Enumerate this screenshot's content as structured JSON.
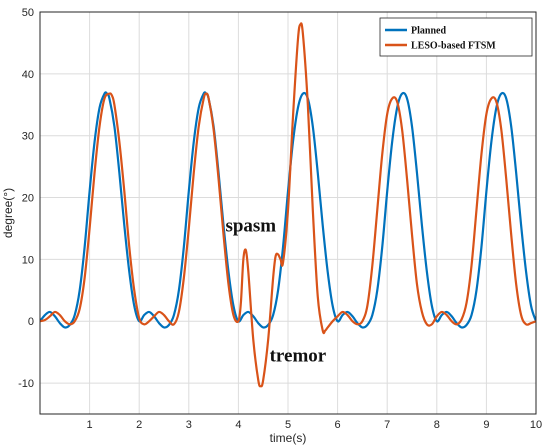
{
  "chart_data": {
    "type": "line",
    "title": "",
    "xlabel": "time(s)",
    "ylabel": "degree(°)",
    "xlim": [
      0,
      10
    ],
    "ylim": [
      -15,
      50
    ],
    "xticks": [
      1,
      2,
      3,
      4,
      5,
      6,
      7,
      8,
      9,
      10
    ],
    "yticks": [
      -10,
      0,
      10,
      20,
      30,
      40,
      50
    ],
    "grid": true,
    "legend_position": "top-right",
    "series": [
      {
        "name": "Planned",
        "color": "#0072BD",
        "x": [
          0.0,
          0.1,
          0.2,
          0.3,
          0.4,
          0.5,
          0.6,
          0.7,
          0.8,
          0.9,
          1.0,
          1.1,
          1.2,
          1.3,
          1.35,
          1.4,
          1.5,
          1.6,
          1.7,
          1.8,
          1.9,
          2.0,
          2.1,
          2.2,
          2.3,
          2.4,
          2.5,
          2.6,
          2.7,
          2.8,
          2.9,
          3.0,
          3.1,
          3.2,
          3.3,
          3.35,
          3.4,
          3.5,
          3.6,
          3.7,
          3.8,
          3.9,
          4.0,
          4.1,
          4.2,
          4.3,
          4.4,
          4.5,
          4.6,
          4.7,
          4.8,
          4.9,
          5.0,
          5.1,
          5.2,
          5.3,
          5.4,
          5.5,
          5.6,
          5.7,
          5.8,
          5.9,
          6.0,
          6.1,
          6.2,
          6.3,
          6.4,
          6.5,
          6.6,
          6.7,
          6.8,
          6.9,
          7.0,
          7.1,
          7.2,
          7.3,
          7.4,
          7.5,
          7.6,
          7.7,
          7.8,
          7.9,
          8.0,
          8.1,
          8.2,
          8.3,
          8.4,
          8.5,
          8.6,
          8.7,
          8.8,
          8.9,
          9.0,
          9.1,
          9.2,
          9.3,
          9.4,
          9.5,
          9.6,
          9.7,
          9.8,
          9.9,
          10.0
        ],
        "y": [
          0,
          1.0,
          1.5,
          0.8,
          -0.3,
          -1.0,
          -0.6,
          1.0,
          5.0,
          12.0,
          21.0,
          29.0,
          34.5,
          36.8,
          36.8,
          36.0,
          31.5,
          24.0,
          15.5,
          8.0,
          2.5,
          0,
          1.0,
          1.5,
          0.8,
          -0.3,
          -1.0,
          -0.6,
          1.0,
          5.0,
          12.0,
          21.0,
          29.0,
          34.5,
          36.8,
          36.8,
          36.0,
          31.5,
          24.0,
          15.5,
          8.0,
          2.5,
          0,
          1.0,
          1.5,
          0.8,
          -0.3,
          -1.0,
          -0.6,
          1.0,
          5.0,
          12.0,
          21.0,
          29.0,
          34.5,
          36.8,
          36.0,
          31.5,
          24.0,
          15.5,
          8.0,
          2.5,
          0,
          1.0,
          1.5,
          0.8,
          -0.3,
          -1.0,
          -0.6,
          1.0,
          5.0,
          12.0,
          21.0,
          29.0,
          34.5,
          36.8,
          36.0,
          31.5,
          24.0,
          15.5,
          8.0,
          2.5,
          0,
          1.0,
          1.5,
          0.8,
          -0.3,
          -1.0,
          -0.6,
          1.0,
          5.0,
          12.0,
          21.0,
          29.0,
          34.5,
          36.8,
          36.0,
          31.5,
          24.0,
          15.5,
          8.0,
          2.5,
          0
        ]
      },
      {
        "name": "LESO-based FTSM",
        "color": "#D95319",
        "x": [
          0.0,
          0.1,
          0.2,
          0.3,
          0.4,
          0.5,
          0.6,
          0.7,
          0.8,
          0.9,
          1.0,
          1.1,
          1.2,
          1.3,
          1.4,
          1.45,
          1.5,
          1.6,
          1.7,
          1.8,
          1.9,
          2.0,
          2.1,
          2.2,
          2.3,
          2.4,
          2.5,
          2.6,
          2.7,
          2.8,
          2.9,
          3.0,
          3.1,
          3.2,
          3.3,
          3.35,
          3.4,
          3.5,
          3.6,
          3.7,
          3.8,
          3.9,
          4.0,
          4.05,
          4.1,
          4.15,
          4.2,
          4.3,
          4.4,
          4.45,
          4.5,
          4.6,
          4.7,
          4.75,
          4.8,
          4.85,
          4.9,
          5.0,
          5.1,
          5.2,
          5.25,
          5.3,
          5.4,
          5.5,
          5.6,
          5.7,
          5.75,
          5.8,
          5.9,
          6.0,
          6.1,
          6.2,
          6.3,
          6.4,
          6.5,
          6.6,
          6.7,
          6.8,
          6.9,
          7.0,
          7.1,
          7.2,
          7.3,
          7.4,
          7.5,
          7.6,
          7.7,
          7.8,
          7.9,
          8.0,
          8.1,
          8.2,
          8.3,
          8.4,
          8.5,
          8.6,
          8.7,
          8.8,
          8.9,
          9.0,
          9.1,
          9.2,
          9.3,
          9.4,
          9.5,
          9.6,
          9.7,
          9.8,
          9.9,
          10.0
        ],
        "y": [
          0,
          0.2,
          0.8,
          1.5,
          1.0,
          0,
          -0.5,
          0,
          2.0,
          7.0,
          15.0,
          24.0,
          31.5,
          36.0,
          36.8,
          36.5,
          35.0,
          29.0,
          21.0,
          12.0,
          5.0,
          0.5,
          -0.5,
          0,
          0.8,
          1.5,
          1.0,
          0,
          -0.5,
          1.5,
          7.0,
          15.0,
          24.0,
          31.5,
          36.0,
          36.8,
          36.0,
          31.0,
          23.0,
          14.0,
          6.0,
          1.0,
          0,
          3.0,
          10.0,
          11.5,
          8.0,
          -3.0,
          -9.5,
          -10.5,
          -9.5,
          -3.0,
          7.0,
          10.5,
          10.8,
          10.0,
          9.5,
          18.0,
          33.0,
          45.5,
          48.0,
          46.5,
          35.0,
          18.0,
          4.0,
          -1.5,
          -1.5,
          -1.0,
          0,
          0.8,
          1.5,
          1.0,
          0,
          -0.5,
          0,
          2.5,
          9.0,
          18.0,
          27.0,
          33.5,
          36.0,
          35.5,
          31.0,
          23.0,
          14.0,
          6.0,
          1.5,
          -0.5,
          -0.5,
          0.8,
          1.5,
          1.0,
          0,
          -0.5,
          0.3,
          3.0,
          9.0,
          18.0,
          27.0,
          33.5,
          36.0,
          35.5,
          31.0,
          23.0,
          14.0,
          6.0,
          1.0,
          -0.5,
          -0.3,
          0
        ]
      }
    ],
    "annotations": [
      {
        "text": "spasm",
        "x": 4.25,
        "y": 14.5
      },
      {
        "text": "tremor",
        "x": 5.2,
        "y": -6.5
      }
    ]
  }
}
